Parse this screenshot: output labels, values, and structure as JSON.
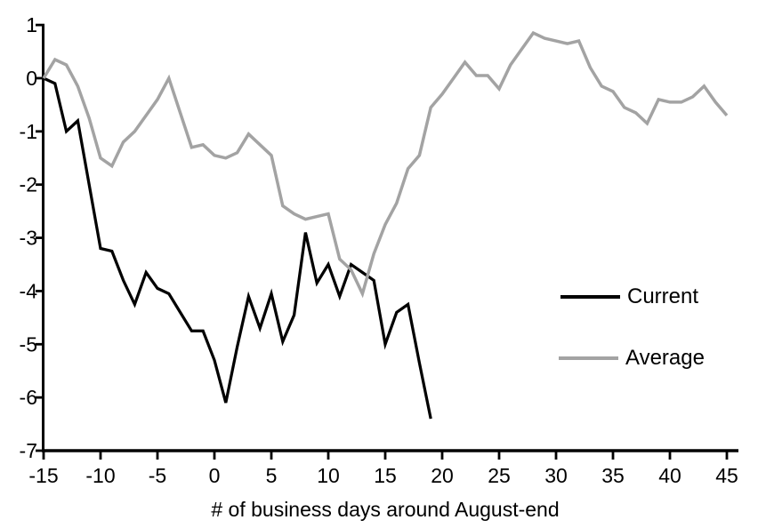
{
  "chart_data": {
    "type": "line",
    "title": "",
    "xlabel": "# of business days around August-end",
    "ylabel": "",
    "xlim": [
      -15,
      45
    ],
    "ylim": [
      -7,
      1
    ],
    "x_ticks": [
      -15,
      -10,
      -5,
      0,
      5,
      10,
      15,
      20,
      25,
      30,
      35,
      40,
      45
    ],
    "y_ticks": [
      1,
      0,
      -1,
      -2,
      -3,
      -4,
      -5,
      -6,
      -7
    ],
    "grid": false,
    "legend_position": "right-middle",
    "series": [
      {
        "name": "Current",
        "color": "#000000",
        "stroke_width": 3.25,
        "x": [
          -15,
          -14,
          -13,
          -12,
          -11,
          -10,
          -9,
          -8,
          -7,
          -6,
          -5,
          -4,
          -3,
          -2,
          -1,
          0,
          1,
          2,
          3,
          4,
          5,
          6,
          7,
          8,
          9,
          10,
          11,
          12,
          13,
          14,
          15,
          16,
          17,
          18,
          19
        ],
        "values": [
          0.0,
          -0.1,
          -1.0,
          -0.8,
          -2.0,
          -3.2,
          -3.25,
          -3.8,
          -4.25,
          -3.65,
          -3.95,
          -4.05,
          -4.4,
          -4.75,
          -4.75,
          -5.3,
          -6.1,
          -5.05,
          -4.1,
          -4.7,
          -4.05,
          -4.95,
          -4.45,
          -2.9,
          -3.85,
          -3.5,
          -4.1,
          -3.5,
          -3.65,
          -3.8,
          -5.0,
          -4.4,
          -4.25,
          -5.35,
          -6.4
        ]
      },
      {
        "name": "Average",
        "color": "#a3a3a3",
        "stroke_width": 3.5,
        "x": [
          -15,
          -14,
          -13,
          -12,
          -11,
          -10,
          -9,
          -8,
          -7,
          -6,
          -5,
          -4,
          -3,
          -2,
          -1,
          0,
          1,
          2,
          3,
          4,
          5,
          6,
          7,
          8,
          9,
          10,
          11,
          12,
          13,
          14,
          15,
          16,
          17,
          18,
          19,
          20,
          21,
          22,
          23,
          24,
          25,
          26,
          27,
          28,
          29,
          30,
          31,
          32,
          33,
          34,
          35,
          36,
          37,
          38,
          39,
          40,
          41,
          42,
          43,
          44,
          45
        ],
        "values": [
          0.0,
          0.35,
          0.25,
          -0.15,
          -0.75,
          -1.5,
          -1.65,
          -1.2,
          -1.0,
          -0.7,
          -0.4,
          0.0,
          -0.65,
          -1.3,
          -1.25,
          -1.45,
          -1.5,
          -1.4,
          -1.05,
          -1.25,
          -1.45,
          -2.4,
          -2.55,
          -2.65,
          -2.6,
          -2.55,
          -3.4,
          -3.6,
          -4.05,
          -3.3,
          -2.75,
          -2.35,
          -1.7,
          -1.45,
          -0.55,
          -0.3,
          0.0,
          0.3,
          0.05,
          0.05,
          -0.2,
          0.25,
          0.55,
          0.85,
          0.75,
          0.7,
          0.65,
          0.7,
          0.2,
          -0.15,
          -0.25,
          -0.55,
          -0.65,
          -0.85,
          -0.4,
          -0.45,
          -0.45,
          -0.35,
          -0.15,
          -0.45,
          -0.7
        ]
      }
    ]
  },
  "legend": {
    "items": [
      {
        "label": "Current",
        "color": "#000000"
      },
      {
        "label": "Average",
        "color": "#a3a3a3"
      }
    ]
  },
  "colors": {
    "background": "#ffffff",
    "axis": "#000000",
    "current": "#000000",
    "average": "#a3a3a3"
  }
}
